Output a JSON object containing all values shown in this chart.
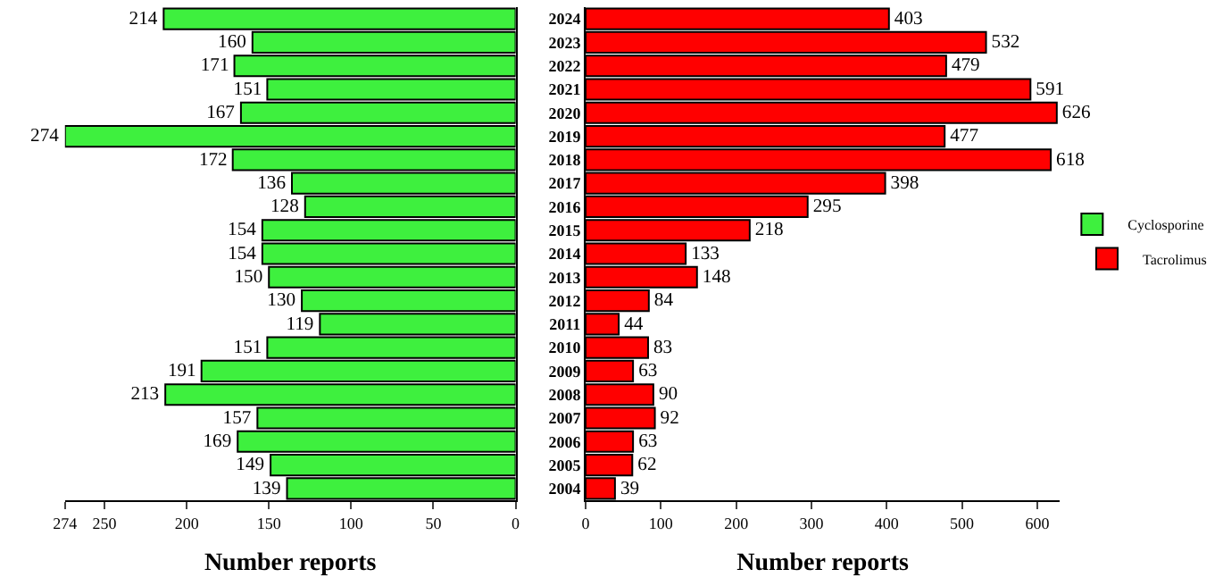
{
  "chart_data": [
    {
      "type": "bar",
      "orientation": "horizontal",
      "xlabel": "Number reports",
      "categories": [
        "2024",
        "2023",
        "2022",
        "2021",
        "2020",
        "2019",
        "2018",
        "2017",
        "2016",
        "2015",
        "2014",
        "2013",
        "2012",
        "2011",
        "2010",
        "2009",
        "2008",
        "2007",
        "2006",
        "2005",
        "2004"
      ],
      "series": [
        {
          "name": "Cyclosporine",
          "color": "#3ef03e",
          "values": [
            214,
            160,
            171,
            151,
            167,
            274,
            172,
            136,
            128,
            154,
            154,
            150,
            130,
            119,
            151,
            191,
            213,
            157,
            169,
            149,
            139
          ]
        }
      ],
      "xlim": [
        274,
        0
      ],
      "xticks": [
        274,
        250,
        200,
        150,
        100,
        50,
        0
      ],
      "data_labels": true,
      "legend": "right",
      "tick_labels": "x",
      "grid": false
    },
    {
      "type": "bar",
      "orientation": "horizontal",
      "xlabel": "Number reports",
      "categories": [
        "2024",
        "2023",
        "2022",
        "2021",
        "2020",
        "2019",
        "2018",
        "2017",
        "2016",
        "2015",
        "2014",
        "2013",
        "2012",
        "2011",
        "2010",
        "2009",
        "2008",
        "2007",
        "2006",
        "2005",
        "2004"
      ],
      "series": [
        {
          "name": "Tacrolimus",
          "color": "#ff0000",
          "values": [
            403,
            532,
            479,
            591,
            626,
            477,
            618,
            398,
            295,
            218,
            133,
            148,
            84,
            44,
            83,
            63,
            90,
            92,
            63,
            62,
            39
          ]
        }
      ],
      "xlim": [
        0,
        630
      ],
      "xticks": [
        0,
        100,
        200,
        300,
        400,
        500,
        600
      ],
      "data_labels": true,
      "legend": "right",
      "grid": false
    }
  ]
}
